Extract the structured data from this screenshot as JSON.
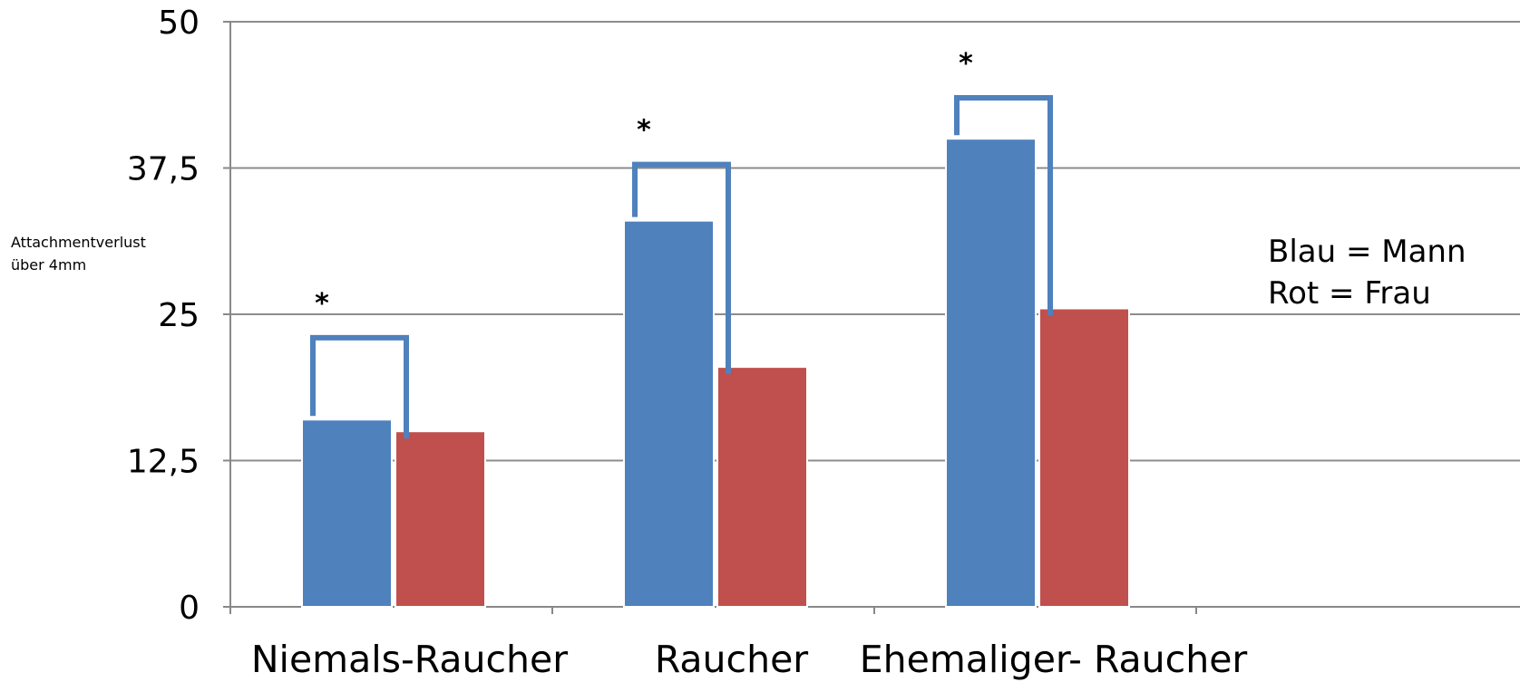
{
  "chart_data": {
    "type": "bar",
    "ylabel_lines": [
      "Attachmentverlust",
      "über 4mm"
    ],
    "categories": [
      "Niemals-Raucher",
      "Raucher",
      "Ehemaliger- Raucher"
    ],
    "series": [
      {
        "color": "#4f81bd",
        "values": [
          16,
          33,
          40
        ]
      },
      {
        "color": "#c0504d",
        "values": [
          15,
          20.5,
          25.5
        ]
      }
    ],
    "ylim": [
      0,
      50
    ],
    "yticks": [
      "0",
      "12,5",
      "25",
      "37,5",
      "50"
    ],
    "ytick_values": [
      0,
      12.5,
      25,
      37.5,
      50
    ],
    "grid": true,
    "legend_lines": [
      "Blau = Mann",
      "Rot = Frau"
    ],
    "legend_position": "right",
    "significance": [
      {
        "category": "Niemals-Raucher",
        "marker": "*",
        "bracket_level": 23
      },
      {
        "category": "Raucher",
        "marker": "*",
        "bracket_level": 37.8
      },
      {
        "category": "Ehemaliger- Raucher",
        "marker": "*",
        "bracket_level": 43.5
      }
    ],
    "bracket_color": "#4f81bd"
  }
}
